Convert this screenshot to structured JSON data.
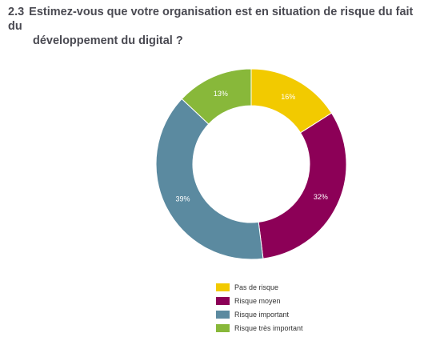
{
  "question": {
    "number": "2.3",
    "line1": "Estimez-vous que votre organisation est en situation de risque du fait du",
    "line2": "développement du digital ?"
  },
  "chart_data": {
    "type": "pie",
    "style": "donut",
    "categories": [
      "Pas de risque",
      "Risque moyen",
      "Risque important",
      "Risque très important"
    ],
    "values": [
      16,
      32,
      39,
      13
    ],
    "labels": [
      "16%",
      "32%",
      "39%",
      "13%"
    ],
    "colors": [
      "#f2ca00",
      "#8c0057",
      "#5b8aa0",
      "#88b83a"
    ],
    "legend_position": "bottom"
  }
}
